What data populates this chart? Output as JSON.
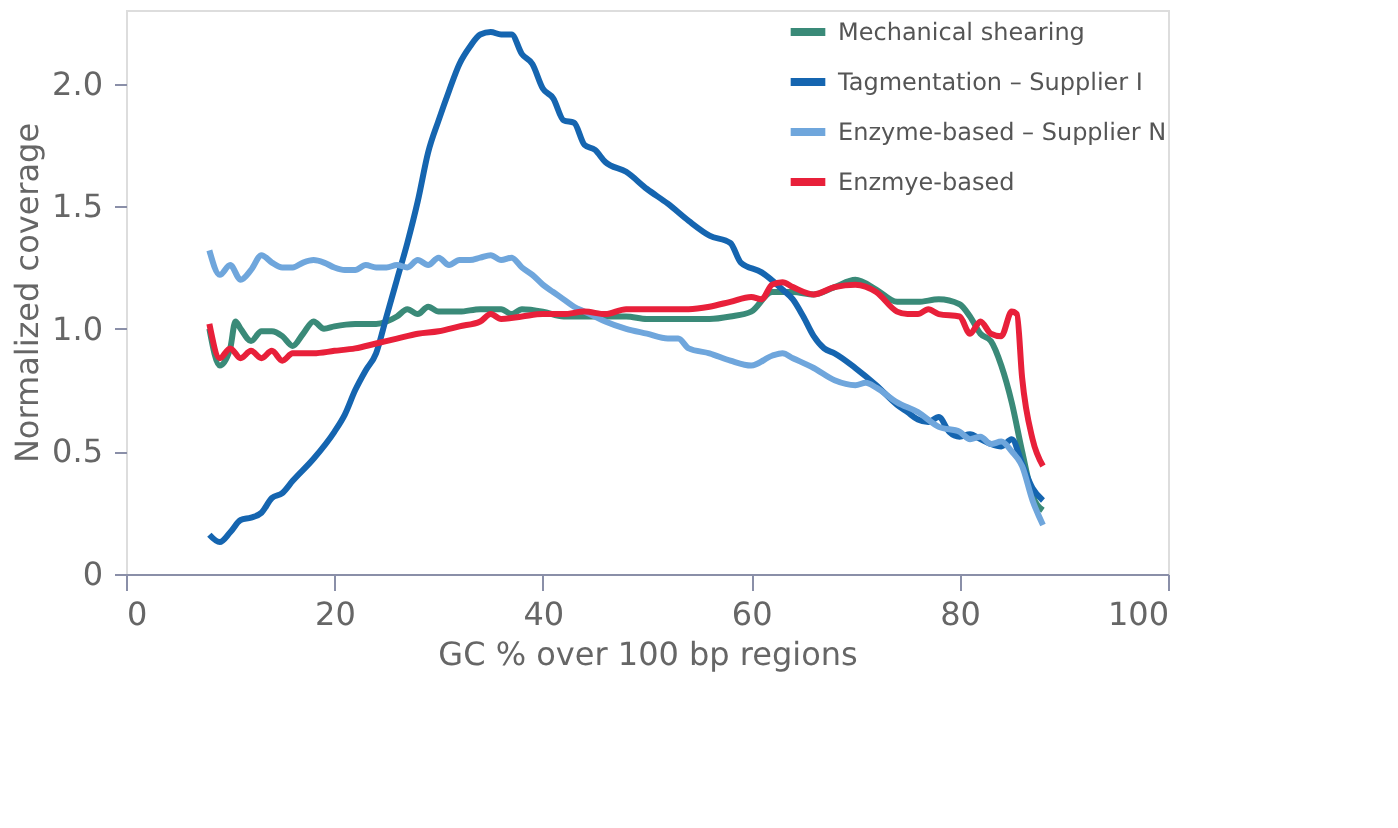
{
  "chart_data": {
    "type": "line",
    "xlabel": "GC % over 100 bp regions",
    "ylabel": "Normalized coverage",
    "xlim": [
      0,
      100
    ],
    "ylim": [
      0,
      2.3
    ],
    "xticks": [
      0,
      20,
      40,
      60,
      80,
      100
    ],
    "yticks": [
      0,
      0.5,
      {
        "value": 1,
        "label": "1.0"
      },
      1.5,
      {
        "value": 2,
        "label": "2.0"
      }
    ],
    "grid": false,
    "legend": "top right",
    "marker": "none",
    "line_style": "solid",
    "series": [
      {
        "name": "Mechanical shearing",
        "color": "#3a8a78",
        "x": [
          8,
          9,
          10,
          10.5,
          11,
          12,
          13,
          14,
          15,
          16,
          17,
          18,
          19,
          20,
          22,
          24,
          26,
          27,
          28,
          29,
          30,
          32,
          34,
          36,
          37,
          38,
          40,
          42,
          44,
          46,
          48,
          50,
          52,
          54,
          56,
          58,
          60,
          62,
          64,
          66,
          68,
          70,
          72,
          74,
          76,
          78,
          80,
          81,
          82,
          83,
          84,
          85,
          86,
          87,
          88
        ],
        "values": [
          1.0,
          0.85,
          0.92,
          1.03,
          1.0,
          0.95,
          0.99,
          0.99,
          0.97,
          0.93,
          0.98,
          1.03,
          1.0,
          1.01,
          1.02,
          1.02,
          1.05,
          1.08,
          1.06,
          1.09,
          1.07,
          1.07,
          1.08,
          1.08,
          1.06,
          1.08,
          1.07,
          1.05,
          1.05,
          1.05,
          1.05,
          1.04,
          1.04,
          1.04,
          1.04,
          1.05,
          1.07,
          1.15,
          1.15,
          1.14,
          1.17,
          1.2,
          1.16,
          1.11,
          1.11,
          1.12,
          1.1,
          1.05,
          0.98,
          0.95,
          0.85,
          0.7,
          0.5,
          0.32,
          0.26
        ]
      },
      {
        "name": "Tagmentation – Supplier I",
        "color": "#1565b0",
        "x": [
          8,
          9,
          10,
          11,
          12,
          13,
          14,
          15,
          16,
          18,
          20,
          21,
          22,
          23,
          24,
          25,
          26,
          27,
          28,
          29,
          30,
          31,
          32,
          33,
          34,
          35,
          36,
          37,
          38,
          39,
          40,
          41,
          42,
          43,
          44,
          45,
          46,
          48,
          50,
          52,
          54,
          56,
          58,
          59,
          61,
          63,
          64,
          65,
          66,
          67,
          68,
          70,
          72,
          74,
          75,
          76,
          77,
          78,
          79,
          80,
          81,
          82,
          83,
          84,
          85,
          86,
          87,
          88
        ],
        "values": [
          0.16,
          0.13,
          0.17,
          0.22,
          0.23,
          0.25,
          0.31,
          0.33,
          0.38,
          0.47,
          0.58,
          0.65,
          0.75,
          0.83,
          0.9,
          1.05,
          1.2,
          1.35,
          1.52,
          1.72,
          1.85,
          1.97,
          2.08,
          2.15,
          2.2,
          2.21,
          2.2,
          2.2,
          2.12,
          2.08,
          1.98,
          1.94,
          1.85,
          1.84,
          1.75,
          1.73,
          1.68,
          1.64,
          1.57,
          1.51,
          1.44,
          1.38,
          1.35,
          1.27,
          1.23,
          1.16,
          1.12,
          1.05,
          0.97,
          0.92,
          0.9,
          0.84,
          0.77,
          0.69,
          0.66,
          0.63,
          0.62,
          0.64,
          0.58,
          0.56,
          0.57,
          0.55,
          0.53,
          0.52,
          0.55,
          0.45,
          0.35,
          0.3
        ]
      },
      {
        "name": "Enzyme-based – Supplier N",
        "color": "#6fa6dc",
        "x": [
          8,
          9,
          10,
          11,
          12,
          13,
          14,
          15,
          16,
          17,
          18,
          19,
          20,
          21,
          22,
          23,
          24,
          25,
          26,
          27,
          28,
          29,
          30,
          31,
          32,
          33,
          34,
          35,
          36,
          37,
          38,
          39,
          40,
          41,
          42,
          43,
          44,
          45,
          46,
          48,
          50,
          52,
          53,
          54,
          56,
          58,
          60,
          62,
          63,
          64,
          66,
          68,
          70,
          71,
          72,
          74,
          76,
          78,
          80,
          81,
          82,
          83,
          84,
          85,
          86,
          87,
          88
        ],
        "values": [
          1.32,
          1.22,
          1.26,
          1.2,
          1.24,
          1.3,
          1.27,
          1.25,
          1.25,
          1.27,
          1.28,
          1.27,
          1.25,
          1.24,
          1.24,
          1.26,
          1.25,
          1.25,
          1.26,
          1.25,
          1.28,
          1.26,
          1.29,
          1.26,
          1.28,
          1.28,
          1.29,
          1.3,
          1.28,
          1.29,
          1.25,
          1.22,
          1.18,
          1.15,
          1.12,
          1.09,
          1.07,
          1.05,
          1.03,
          1.0,
          0.98,
          0.96,
          0.96,
          0.92,
          0.9,
          0.87,
          0.85,
          0.89,
          0.9,
          0.88,
          0.84,
          0.79,
          0.77,
          0.78,
          0.76,
          0.7,
          0.66,
          0.6,
          0.58,
          0.55,
          0.56,
          0.53,
          0.54,
          0.5,
          0.44,
          0.3,
          0.2
        ]
      },
      {
        "name": "Enzmye-based",
        "color": "#e8203a",
        "x": [
          8,
          9,
          10,
          11,
          12,
          13,
          14,
          15,
          16,
          18,
          20,
          22,
          24,
          26,
          28,
          30,
          32,
          34,
          35,
          36,
          38,
          40,
          42,
          44,
          46,
          48,
          50,
          52,
          54,
          56,
          58,
          60,
          61,
          62,
          63,
          64,
          66,
          68,
          70,
          72,
          74,
          75,
          76,
          77,
          78,
          80,
          81,
          82,
          83,
          84,
          85,
          85.5,
          86,
          87,
          88
        ],
        "values": [
          1.02,
          0.88,
          0.92,
          0.88,
          0.91,
          0.88,
          0.91,
          0.87,
          0.9,
          0.9,
          0.91,
          0.92,
          0.94,
          0.96,
          0.98,
          0.99,
          1.01,
          1.03,
          1.06,
          1.04,
          1.05,
          1.06,
          1.06,
          1.07,
          1.06,
          1.08,
          1.08,
          1.08,
          1.08,
          1.09,
          1.11,
          1.13,
          1.12,
          1.18,
          1.19,
          1.17,
          1.14,
          1.17,
          1.18,
          1.15,
          1.07,
          1.06,
          1.06,
          1.08,
          1.06,
          1.05,
          0.98,
          1.03,
          0.98,
          0.97,
          1.07,
          1.06,
          0.8,
          0.55,
          0.44
        ]
      }
    ]
  }
}
